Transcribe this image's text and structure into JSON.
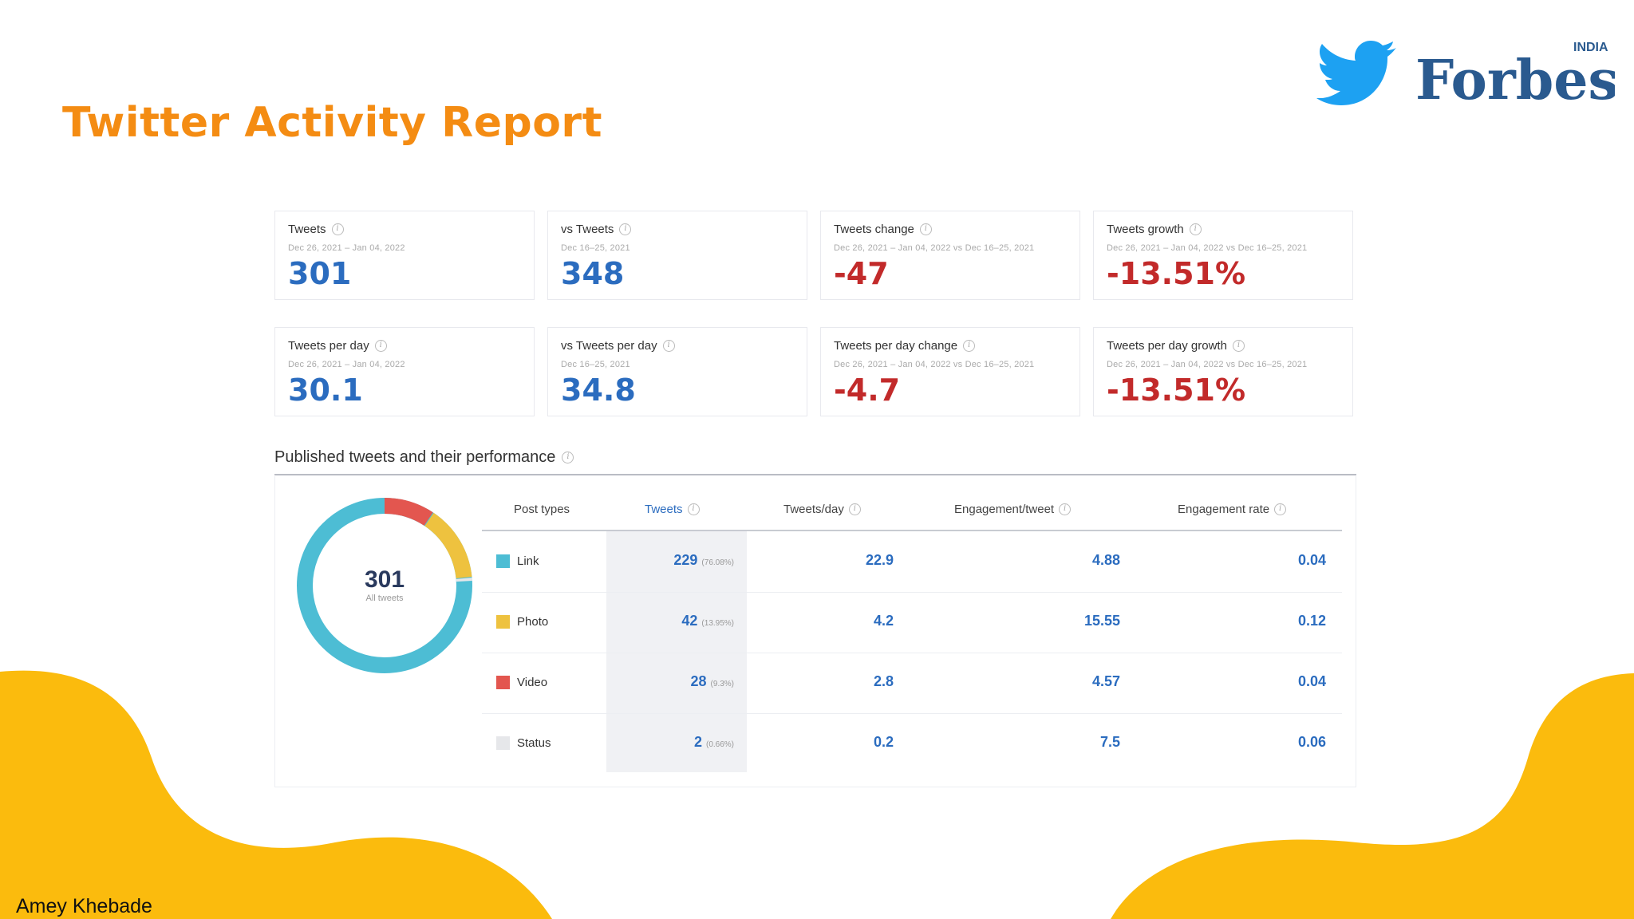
{
  "slide": {
    "title": "Twitter Activity Report",
    "author": "Amey Khebade",
    "logo": {
      "brand": "Forbes",
      "edition": "INDIA",
      "icon": "twitter-bird-icon"
    },
    "colors": {
      "title": "#f48c13",
      "blob": "#fbbb0d",
      "twitter": "#1da1f2",
      "forbes": "#2a5a8f"
    }
  },
  "metrics": [
    {
      "label": "Tweets",
      "date": "Dec 26, 2021 – Jan 04, 2022",
      "value": "301"
    },
    {
      "label": "vs Tweets",
      "date": "Dec 16–25, 2021",
      "value": "348"
    },
    {
      "label": "Tweets change",
      "date": "Dec 26, 2021 – Jan 04, 2022 vs Dec 16–25, 2021",
      "value": "-47"
    },
    {
      "label": "Tweets growth",
      "date": "Dec 26, 2021 – Jan 04, 2022 vs Dec 16–25, 2021",
      "value": "-13.51%"
    },
    {
      "label": "Tweets per day",
      "date": "Dec 26, 2021 – Jan 04, 2022",
      "value": "30.1"
    },
    {
      "label": "vs Tweets per day",
      "date": "Dec 16–25, 2021",
      "value": "34.8"
    },
    {
      "label": "Tweets per day change",
      "date": "Dec 26, 2021 – Jan 04, 2022 vs Dec 16–25, 2021",
      "value": "-4.7"
    },
    {
      "label": "Tweets per day growth",
      "date": "Dec 26, 2021 – Jan 04, 2022 vs Dec 16–25, 2021",
      "value": "-13.51%"
    }
  ],
  "performance": {
    "title": "Published tweets and their performance",
    "donut": {
      "total": "301",
      "caption": "All tweets"
    },
    "headers": [
      "Post types",
      "Tweets",
      "Tweets/day",
      "Engagement/tweet",
      "Engagement rate"
    ],
    "rows": [
      {
        "type": "Link",
        "color": "#4dbdd4",
        "tweets": "229",
        "share": "(76.08%)",
        "per_day": "22.9",
        "engagement": "4.88",
        "rate": "0.04"
      },
      {
        "type": "Photo",
        "color": "#eec23f",
        "tweets": "42",
        "share": "(13.95%)",
        "per_day": "4.2",
        "engagement": "15.55",
        "rate": "0.12"
      },
      {
        "type": "Video",
        "color": "#e3564f",
        "tweets": "28",
        "share": "(9.3%)",
        "per_day": "2.8",
        "engagement": "4.57",
        "rate": "0.04"
      },
      {
        "type": "Status",
        "color": "#e6e7ea",
        "tweets": "2",
        "share": "(0.66%)",
        "per_day": "0.2",
        "engagement": "7.5",
        "rate": "0.06"
      }
    ]
  }
}
